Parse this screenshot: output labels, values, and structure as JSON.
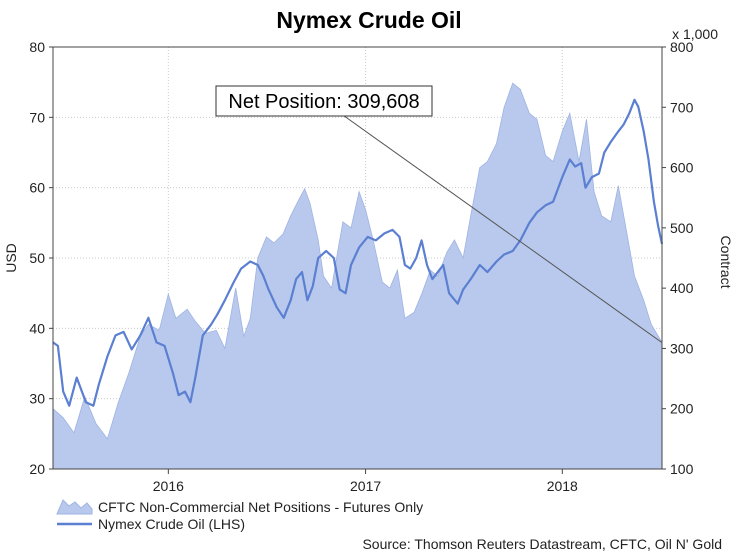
{
  "chart_data": {
    "type": "area",
    "title": "Nymex Crude Oil",
    "ylabel_left": "USD",
    "ylabel_right": "Contract",
    "right_axis_multiplier": "x 1,000",
    "ylim_left": [
      20,
      80
    ],
    "ylim_right": [
      100,
      800
    ],
    "yticks_left": [
      20,
      30,
      40,
      50,
      60,
      70,
      80
    ],
    "yticks_right": [
      100,
      200,
      300,
      400,
      500,
      600,
      700,
      800
    ],
    "xlim": [
      "2015-06-01",
      "2018-07-05"
    ],
    "xticks": [
      {
        "date": "2016-01-01",
        "label": "2016"
      },
      {
        "date": "2017-01-01",
        "label": "2017"
      },
      {
        "date": "2018-01-01",
        "label": "2018"
      }
    ],
    "grid": true,
    "legend_position": "bottom-left",
    "annotation": {
      "text": "Net Position: 309,608",
      "points_to": {
        "date": "2018-07-05",
        "value": 309.608,
        "axis": "right"
      }
    },
    "source": "Source: Thomson Reuters Datastream, CFTC, Oil N' Gold",
    "colors": {
      "area_fill": "#b9c9ed",
      "area_edge": "#9fb3e3",
      "line": "#5b7fd1",
      "grid": "#cccccc"
    },
    "series": [
      {
        "name": "CFTC Non-Commercial Net Positions - Futures Only",
        "type": "area",
        "axis": "right",
        "x": [
          "2015-06-01",
          "2015-06-20",
          "2015-07-10",
          "2015-07-30",
          "2015-08-20",
          "2015-09-10",
          "2015-09-30",
          "2015-10-20",
          "2015-11-10",
          "2015-11-25",
          "2015-12-15",
          "2016-01-01",
          "2016-01-15",
          "2016-02-05",
          "2016-02-20",
          "2016-03-10",
          "2016-03-30",
          "2016-04-15",
          "2016-05-05",
          "2016-05-20",
          "2016-06-01",
          "2016-06-15",
          "2016-07-01",
          "2016-07-15",
          "2016-08-01",
          "2016-08-15",
          "2016-09-01",
          "2016-09-10",
          "2016-09-20",
          "2016-10-05",
          "2016-10-15",
          "2016-10-30",
          "2016-11-10",
          "2016-11-20",
          "2016-12-05",
          "2016-12-20",
          "2017-01-01",
          "2017-01-15",
          "2017-02-01",
          "2017-02-15",
          "2017-03-01",
          "2017-03-15",
          "2017-04-01",
          "2017-04-15",
          "2017-05-01",
          "2017-05-15",
          "2017-06-01",
          "2017-06-15",
          "2017-07-01",
          "2017-07-15",
          "2017-08-01",
          "2017-08-15",
          "2017-09-01",
          "2017-09-15",
          "2017-10-01",
          "2017-10-15",
          "2017-11-01",
          "2017-11-15",
          "2017-12-01",
          "2017-12-15",
          "2018-01-01",
          "2018-01-15",
          "2018-02-01",
          "2018-02-15",
          "2018-03-01",
          "2018-03-15",
          "2018-04-01",
          "2018-04-15",
          "2018-05-01",
          "2018-05-15",
          "2018-06-01",
          "2018-06-15",
          "2018-07-05"
        ],
        "values": [
          200,
          185,
          160,
          220,
          175,
          150,
          210,
          260,
          320,
          340,
          330,
          390,
          350,
          365,
          345,
          325,
          330,
          300,
          400,
          320,
          350,
          450,
          485,
          475,
          490,
          520,
          550,
          565,
          540,
          480,
          420,
          400,
          460,
          510,
          500,
          560,
          530,
          480,
          410,
          400,
          430,
          350,
          360,
          390,
          430,
          420,
          460,
          480,
          450,
          520,
          600,
          610,
          640,
          700,
          740,
          730,
          690,
          680,
          620,
          610,
          660,
          690,
          610,
          680,
          560,
          520,
          510,
          570,
          490,
          420,
          380,
          340,
          310
        ]
      },
      {
        "name": "Nymex Crude Oil (LHS)",
        "type": "line",
        "axis": "left",
        "x": [
          "2015-06-01",
          "2015-06-10",
          "2015-06-20",
          "2015-07-01",
          "2015-07-15",
          "2015-08-01",
          "2015-08-15",
          "2015-08-25",
          "2015-09-10",
          "2015-09-25",
          "2015-10-10",
          "2015-10-25",
          "2015-11-10",
          "2015-11-25",
          "2015-12-10",
          "2015-12-25",
          "2016-01-10",
          "2016-01-20",
          "2016-02-01",
          "2016-02-11",
          "2016-02-20",
          "2016-03-05",
          "2016-03-20",
          "2016-04-01",
          "2016-04-15",
          "2016-05-01",
          "2016-05-15",
          "2016-06-01",
          "2016-06-15",
          "2016-06-25",
          "2016-07-05",
          "2016-07-20",
          "2016-08-02",
          "2016-08-15",
          "2016-08-25",
          "2016-09-05",
          "2016-09-15",
          "2016-09-25",
          "2016-10-05",
          "2016-10-20",
          "2016-11-03",
          "2016-11-14",
          "2016-11-25",
          "2016-12-05",
          "2016-12-20",
          "2017-01-05",
          "2017-01-20",
          "2017-02-05",
          "2017-02-20",
          "2017-03-05",
          "2017-03-15",
          "2017-03-25",
          "2017-04-05",
          "2017-04-15",
          "2017-04-25",
          "2017-05-05",
          "2017-05-15",
          "2017-05-25",
          "2017-06-05",
          "2017-06-21",
          "2017-07-01",
          "2017-07-15",
          "2017-08-01",
          "2017-08-15",
          "2017-09-01",
          "2017-09-15",
          "2017-10-01",
          "2017-10-15",
          "2017-11-01",
          "2017-11-15",
          "2017-12-01",
          "2017-12-15",
          "2018-01-01",
          "2018-01-15",
          "2018-01-25",
          "2018-02-05",
          "2018-02-13",
          "2018-02-25",
          "2018-03-10",
          "2018-03-20",
          "2018-04-01",
          "2018-04-15",
          "2018-04-25",
          "2018-05-05",
          "2018-05-15",
          "2018-05-22",
          "2018-06-01",
          "2018-06-10",
          "2018-06-20",
          "2018-06-28",
          "2018-07-05"
        ],
        "values": [
          38,
          37.5,
          31,
          29,
          33,
          29.5,
          29,
          32,
          36,
          39,
          39.5,
          37,
          39,
          41.5,
          38,
          37.5,
          33.5,
          30.5,
          31,
          29.5,
          33,
          39,
          40.5,
          42,
          44,
          46.5,
          48.5,
          49.5,
          49,
          47.5,
          45.5,
          43,
          41.5,
          44,
          47,
          48,
          44,
          46,
          50,
          51,
          50,
          45.5,
          45,
          49,
          51.5,
          53,
          52.5,
          53.5,
          54,
          53,
          49,
          48.5,
          50,
          52.5,
          49,
          47,
          48,
          49,
          45,
          43.5,
          45.5,
          47,
          49,
          48,
          49.5,
          50.5,
          51,
          52.5,
          55,
          56.5,
          57.5,
          58,
          61.5,
          64,
          63,
          63.5,
          60,
          61.5,
          62,
          65,
          66.5,
          68,
          69,
          70.5,
          72.5,
          71.5,
          68,
          64,
          58,
          54.5,
          52
        ]
      }
    ]
  }
}
